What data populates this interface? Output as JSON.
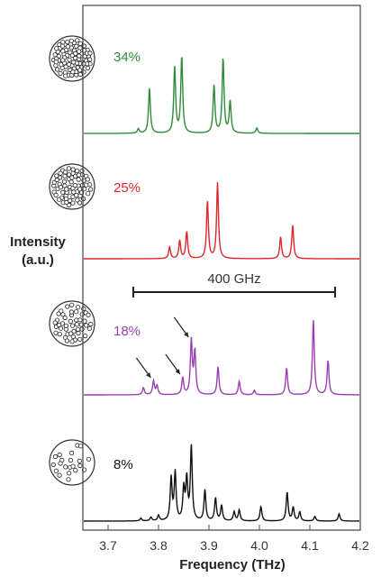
{
  "chart_data": {
    "type": "line",
    "xlabel": "Frequency (THz)",
    "ylabel": "Intensity (a.u.)",
    "ylabel_lines": [
      "Intensity",
      "(a.u.)"
    ],
    "xlim": [
      3.65,
      4.2
    ],
    "x_ticks": [
      {
        "value": 3.7,
        "label": "3.7"
      },
      {
        "value": 3.8,
        "label": "3.8"
      },
      {
        "value": 3.9,
        "label": "3.9"
      },
      {
        "value": 4.0,
        "label": "4.0"
      },
      {
        "value": 4.1,
        "label": "4.1"
      },
      {
        "value": 4.2,
        "label": "4.2"
      }
    ],
    "grid": false,
    "scale_bar": {
      "label": "400 GHz",
      "x_start": 3.75,
      "x_end": 4.15
    },
    "series": [
      {
        "name": "34%",
        "color": "#2e8b3a",
        "peaks": [
          {
            "x": 3.76,
            "h": 0.05
          },
          {
            "x": 3.782,
            "h": 0.5
          },
          {
            "x": 3.832,
            "h": 0.73
          },
          {
            "x": 3.846,
            "h": 0.85
          },
          {
            "x": 3.91,
            "h": 0.53
          },
          {
            "x": 3.928,
            "h": 0.83
          },
          {
            "x": 3.942,
            "h": 0.35
          },
          {
            "x": 3.995,
            "h": 0.06
          }
        ]
      },
      {
        "name": "25%",
        "color": "#e0262a",
        "peaks": [
          {
            "x": 3.822,
            "h": 0.13
          },
          {
            "x": 3.842,
            "h": 0.2
          },
          {
            "x": 3.856,
            "h": 0.3
          },
          {
            "x": 3.897,
            "h": 0.64
          },
          {
            "x": 3.917,
            "h": 0.84
          },
          {
            "x": 4.042,
            "h": 0.24
          },
          {
            "x": 4.066,
            "h": 0.37
          }
        ]
      },
      {
        "name": "18%",
        "color": "#9a3fb0",
        "peaks": [
          {
            "x": 3.77,
            "h": 0.08
          },
          {
            "x": 3.79,
            "h": 0.15
          },
          {
            "x": 3.797,
            "h": 0.1
          },
          {
            "x": 3.848,
            "h": 0.19
          },
          {
            "x": 3.865,
            "h": 0.6
          },
          {
            "x": 3.872,
            "h": 0.47
          },
          {
            "x": 3.918,
            "h": 0.31
          },
          {
            "x": 3.96,
            "h": 0.15
          },
          {
            "x": 3.99,
            "h": 0.05
          },
          {
            "x": 4.054,
            "h": 0.3
          },
          {
            "x": 4.107,
            "h": 0.83
          },
          {
            "x": 4.136,
            "h": 0.38
          }
        ],
        "arrows_at": [
          3.79,
          3.848,
          3.865
        ]
      },
      {
        "name": "8%",
        "color": "#111111",
        "peaks": [
          {
            "x": 3.765,
            "h": 0.03
          },
          {
            "x": 3.785,
            "h": 0.04
          },
          {
            "x": 3.8,
            "h": 0.06
          },
          {
            "x": 3.825,
            "h": 0.47
          },
          {
            "x": 3.833,
            "h": 0.53
          },
          {
            "x": 3.85,
            "h": 0.35
          },
          {
            "x": 3.856,
            "h": 0.45
          },
          {
            "x": 3.865,
            "h": 0.82
          },
          {
            "x": 3.892,
            "h": 0.34
          },
          {
            "x": 3.913,
            "h": 0.25
          },
          {
            "x": 3.925,
            "h": 0.17
          },
          {
            "x": 3.95,
            "h": 0.1
          },
          {
            "x": 3.96,
            "h": 0.12
          },
          {
            "x": 4.003,
            "h": 0.16
          },
          {
            "x": 4.055,
            "h": 0.32
          },
          {
            "x": 4.067,
            "h": 0.15
          },
          {
            "x": 4.08,
            "h": 0.1
          },
          {
            "x": 4.11,
            "h": 0.05
          },
          {
            "x": 4.158,
            "h": 0.08
          }
        ]
      }
    ],
    "particle_densities": [
      34,
      25,
      18,
      8
    ]
  }
}
